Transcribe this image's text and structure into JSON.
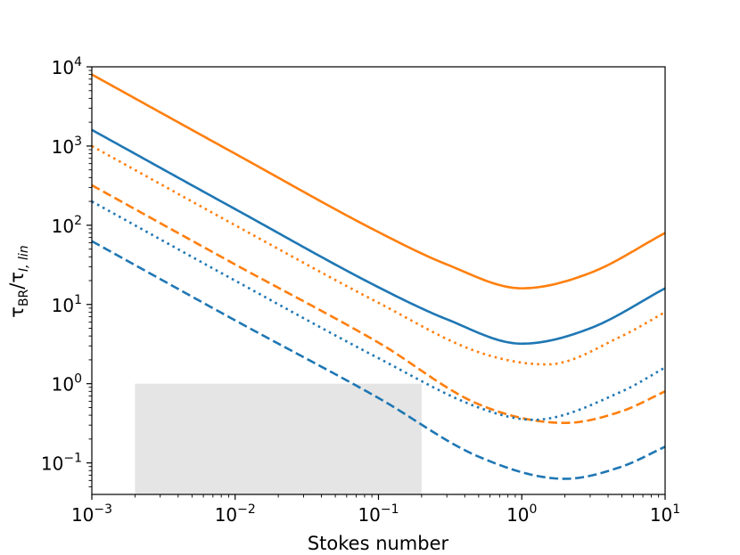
{
  "chart_data": {
    "type": "line",
    "xlabel": "Stokes number",
    "ylabel": {
      "base": "τ",
      "base_sub": "BR",
      "slash": "/τ",
      "slash_sub": "I, lin"
    },
    "x_scale": "log",
    "y_scale": "log",
    "xlim": [
      0.001,
      10
    ],
    "ylim": [
      0.04,
      10000
    ],
    "x_ticks": [
      {
        "value": 0.001,
        "base": "10",
        "exp": "−3"
      },
      {
        "value": 0.01,
        "base": "10",
        "exp": "−2"
      },
      {
        "value": 0.1,
        "base": "10",
        "exp": "−1"
      },
      {
        "value": 1,
        "base": "10",
        "exp": "0"
      },
      {
        "value": 10,
        "base": "10",
        "exp": "1"
      }
    ],
    "y_ticks": [
      {
        "value": 0.1,
        "base": "10",
        "exp": "−1"
      },
      {
        "value": 1,
        "base": "10",
        "exp": "0"
      },
      {
        "value": 10,
        "base": "10",
        "exp": "1"
      },
      {
        "value": 100,
        "base": "10",
        "exp": "2"
      },
      {
        "value": 1000,
        "base": "10",
        "exp": "3"
      },
      {
        "value": 10000,
        "base": "10",
        "exp": "4"
      }
    ],
    "shaded_region": {
      "x": [
        0.002,
        0.2
      ],
      "y": [
        0.04,
        1
      ],
      "color": "#e5e5e5"
    },
    "grid": false,
    "legend": "none",
    "series": [
      {
        "color": "#ff7f0e",
        "style": "solid",
        "x": [
          0.001,
          0.01,
          0.1,
          0.3,
          1,
          3,
          10
        ],
        "y": [
          8000,
          800,
          82,
          32,
          16,
          25,
          80
        ]
      },
      {
        "color": "#1f77b4",
        "style": "solid",
        "x": [
          0.001,
          0.01,
          0.1,
          0.3,
          1,
          3,
          10
        ],
        "y": [
          1600,
          160,
          16.5,
          6.5,
          3.2,
          5,
          16
        ]
      },
      {
        "color": "#ff7f0e",
        "style": "dotted",
        "x": [
          0.001,
          0.01,
          0.1,
          0.5,
          1.5,
          5,
          10
        ],
        "y": [
          1000,
          100,
          10.5,
          2.5,
          1.75,
          4,
          8
        ]
      },
      {
        "color": "#ff7f0e",
        "style": "dashed",
        "x": [
          0.001,
          0.01,
          0.1,
          0.5,
          2,
          5,
          10
        ],
        "y": [
          320,
          32,
          3.3,
          0.55,
          0.32,
          0.45,
          0.8
        ]
      },
      {
        "color": "#1f77b4",
        "style": "dotted",
        "x": [
          0.001,
          0.01,
          0.1,
          0.5,
          1.2,
          5,
          10
        ],
        "y": [
          200,
          20,
          2.1,
          0.5,
          0.35,
          0.8,
          1.6
        ]
      },
      {
        "color": "#1f77b4",
        "style": "dashed",
        "x": [
          0.001,
          0.01,
          0.1,
          0.5,
          2,
          5,
          10
        ],
        "y": [
          63,
          6.3,
          0.66,
          0.12,
          0.063,
          0.09,
          0.16
        ]
      }
    ]
  }
}
